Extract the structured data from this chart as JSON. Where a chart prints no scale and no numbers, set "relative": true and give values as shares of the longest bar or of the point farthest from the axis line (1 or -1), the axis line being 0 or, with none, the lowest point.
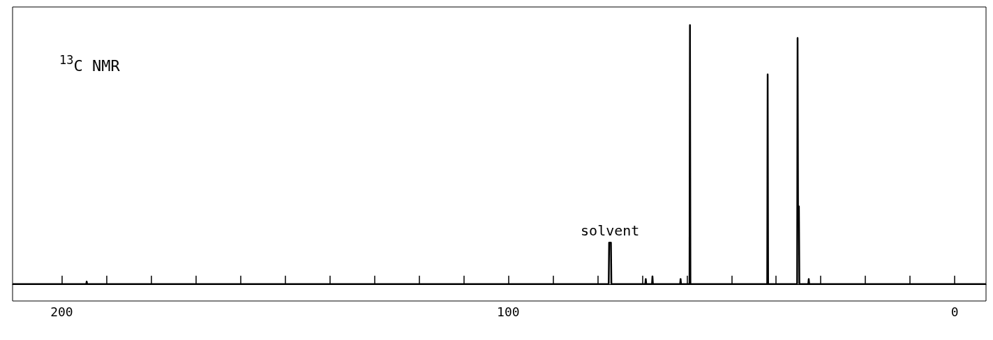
{
  "chart_data": {
    "type": "line",
    "title": "$^{13}$C NMR",
    "relative": true,
    "x": [
      211,
      194.5,
      194.4,
      194.3,
      77.5,
      77.4,
      77.0,
      76.9,
      69.3,
      69.2,
      69.1,
      67.8,
      67.7,
      67.6,
      61.5,
      61.4,
      61.3,
      59.4,
      59.3,
      59.2,
      42.0,
      41.9,
      41.8,
      35.3,
      35.2,
      35.1,
      34.9,
      34.8,
      32.8,
      32.7,
      32.6,
      -7
    ],
    "series": [
      {
        "color": "#000000",
        "values": [
          0,
          0,
          0.01,
          0,
          0,
          0.16,
          0.16,
          0,
          0,
          0.02,
          0,
          0,
          0.03,
          0,
          0,
          0.02,
          0,
          0,
          1,
          0,
          0,
          0.81,
          0,
          0,
          0.95,
          0.3,
          0.3,
          0,
          0,
          0.02,
          0,
          0
        ]
      }
    ],
    "xlim": [
      211,
      -7
    ],
    "xticks": [
      200,
      {
        "value": 190,
        "label": null
      },
      {
        "value": 180,
        "label": null
      },
      {
        "value": 170,
        "label": null
      },
      {
        "value": 160,
        "label": null
      },
      {
        "value": 150,
        "label": null
      },
      {
        "value": 140,
        "label": null
      },
      {
        "value": 130,
        "label": null
      },
      {
        "value": 120,
        "label": null
      },
      {
        "value": 110,
        "label": null
      },
      100,
      {
        "value": 90,
        "label": null
      },
      {
        "value": 80,
        "label": null
      },
      {
        "value": 70,
        "label": null
      },
      {
        "value": 60,
        "label": null
      },
      {
        "value": 50,
        "label": null
      },
      {
        "value": 40,
        "label": null
      },
      {
        "value": 30,
        "label": null
      },
      {
        "value": 20,
        "label": null
      },
      {
        "value": 10,
        "label": null
      },
      0
    ],
    "annotations": [
      {
        "text": "solvent",
        "x": 77.2,
        "y": 0.16
      }
    ],
    "grid": false,
    "marker": "none",
    "line_style": "solid"
  }
}
